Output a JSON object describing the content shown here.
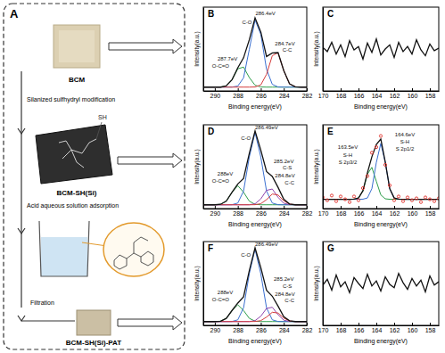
{
  "diagram": {
    "label": "A",
    "materials": [
      "BCM",
      "BCM-SH(Si)",
      "BCM-SH(Si)-PAT"
    ],
    "steps": [
      "Silanized sulfhydryl modification",
      "Acid aqueous solution adsorption",
      "Filtration"
    ],
    "structure_label": "SH"
  },
  "chart_data": [
    {
      "type": "line",
      "title": "B",
      "xlabel": "Binding energy(eV)",
      "ylabel": "Intensity(a.u.)",
      "x": [
        291,
        290.5,
        290,
        289.5,
        289,
        288.5,
        288,
        287.5,
        287,
        286.5,
        286,
        285.5,
        285,
        284.5,
        284,
        283.5,
        283,
        282.5,
        282
      ],
      "xlim": [
        291,
        282
      ],
      "xticks": [
        290,
        288,
        286,
        284,
        282
      ],
      "ylim": [
        0,
        110
      ],
      "yticks": [],
      "tick_labels": "x",
      "series": [
        {
          "color": "#2e9e4a",
          "values": [
            5,
            5,
            5,
            5,
            6.7,
            14.8,
            29,
            31.3,
            17.6,
            7.5,
            5.2,
            5,
            5,
            5,
            5,
            5,
            5,
            5,
            5
          ]
        },
        {
          "color": "#3a6fd0",
          "values": [
            5,
            5,
            5,
            5,
            5,
            5,
            6.4,
            17.2,
            54.5,
            93.2,
            74.3,
            28.4,
            8.6,
            5.2,
            5,
            5,
            5,
            5,
            5
          ]
        },
        {
          "color": "#d43c3c",
          "values": [
            5,
            5,
            5,
            5,
            5,
            5,
            5,
            5,
            5,
            5.2,
            7.9,
            21.8,
            46.3,
            50.1,
            26.6,
            9.3,
            5.4,
            5,
            5
          ]
        },
        {
          "color": "#111111",
          "values": [
            5,
            5,
            5,
            5,
            6.7,
            14.8,
            30.4,
            43.5,
            67.1,
            95.9,
            77.4,
            45.2,
            49.9,
            50.3,
            26.6,
            9.3,
            5.4,
            5,
            5
          ]
        }
      ],
      "annotations": [
        {
          "text": "286.4eV",
          "x": 285.6,
          "y": 100
        },
        {
          "text": "C-O",
          "x": 287.2,
          "y": 88
        },
        {
          "text": "284.7eV",
          "x": 283.9,
          "y": 60
        },
        {
          "text": "C-C",
          "x": 283.7,
          "y": 51
        },
        {
          "text": "287.7eV",
          "x": 288.9,
          "y": 40
        },
        {
          "text": "O-C=O",
          "x": 289.5,
          "y": 31
        }
      ]
    },
    {
      "type": "line",
      "title": "C",
      "xlabel": "Binding energy(eV)",
      "ylabel": "Intensity(a.u.)",
      "x": [
        170,
        169.5,
        169,
        168.5,
        168,
        167.5,
        167,
        166.5,
        166,
        165.5,
        165,
        164.5,
        164,
        163.5,
        163,
        162.5,
        162,
        161.5,
        161,
        160.5,
        160,
        159.5,
        159,
        158.5,
        158,
        157.5,
        157
      ],
      "xlim": [
        170,
        157
      ],
      "xticks": [
        170,
        168,
        166,
        164,
        162,
        160,
        158
      ],
      "ylim": [
        0,
        100
      ],
      "yticks": [],
      "tick_labels": "x",
      "series": [
        {
          "color": "#111111",
          "values": [
            52,
            47,
            58,
            44,
            55,
            41,
            60,
            49,
            53,
            38,
            57,
            46,
            62,
            43,
            50,
            55,
            40,
            58,
            47,
            53,
            44,
            61,
            49,
            42,
            56,
            48,
            51
          ]
        }
      ],
      "annotations": []
    },
    {
      "type": "line",
      "title": "D",
      "xlabel": "Binding energy(eV)",
      "ylabel": "Intensity(a.u.)",
      "x": [
        291,
        290.5,
        290,
        289.5,
        289,
        288.5,
        288,
        287.5,
        287,
        286.5,
        286,
        285.5,
        285,
        284.5,
        284,
        283.5,
        283,
        282.5,
        282
      ],
      "xlim": [
        291,
        282
      ],
      "xticks": [
        290,
        288,
        286,
        284,
        282
      ],
      "ylim": [
        0,
        110
      ],
      "yticks": [],
      "tick_labels": "x",
      "series": [
        {
          "color": "#2e9e4a",
          "values": [
            5,
            5,
            5,
            5.6,
            9.8,
            21.5,
            30,
            21.5,
            9.8,
            5.6,
            5,
            5,
            5,
            5,
            5,
            5,
            5,
            5,
            5
          ]
        },
        {
          "color": "#3a6fd0",
          "values": [
            5,
            5,
            5,
            5,
            5,
            5.1,
            7.3,
            23,
            67.7,
            100,
            67.7,
            23,
            7.3,
            5.1,
            5,
            5,
            5,
            5,
            5
          ]
        },
        {
          "color": "#8e44ad",
          "values": [
            5,
            5,
            5,
            5,
            5,
            5,
            5,
            5,
            5,
            6.3,
            12.7,
            23.9,
            25.7,
            14.9,
            7,
            5.2,
            5,
            5,
            5
          ]
        },
        {
          "color": "#d43c3c",
          "values": [
            5,
            5,
            5,
            5,
            5,
            5,
            5,
            5,
            5,
            5.1,
            6.4,
            11.8,
            19.1,
            17.9,
            10.3,
            5.9,
            5,
            5,
            5
          ]
        },
        {
          "color": "#111111",
          "values": [
            5,
            5,
            5,
            5.6,
            9.8,
            21.6,
            32.3,
            39.5,
            72.5,
            102,
            76.8,
            48.7,
            42.1,
            27.9,
            12.3,
            6.1,
            5,
            5,
            5
          ]
        }
      ],
      "annotations": [
        {
          "text": "286.49eV",
          "x": 285.5,
          "y": 104
        },
        {
          "text": "C-O",
          "x": 287.3,
          "y": 90
        },
        {
          "text": "285.2eV",
          "x": 284.0,
          "y": 60
        },
        {
          "text": "C-S",
          "x": 283.7,
          "y": 51
        },
        {
          "text": "284.8eV",
          "x": 283.9,
          "y": 41
        },
        {
          "text": "C-C",
          "x": 283.5,
          "y": 32
        },
        {
          "text": "288eV",
          "x": 289.1,
          "y": 43
        },
        {
          "text": "O-C=O",
          "x": 289.5,
          "y": 34
        }
      ]
    },
    {
      "type": "line",
      "title": "E",
      "xlabel": "Binding energy(eV)",
      "ylabel": "Intensity(a.u.)",
      "x": [
        170,
        169.5,
        169,
        168.5,
        168,
        167.5,
        167,
        166.5,
        166,
        165.5,
        165,
        164.5,
        164,
        163.5,
        163,
        162.5,
        162,
        161.5,
        161,
        160.5,
        160,
        159.5,
        159,
        158.5,
        158,
        157.5,
        157
      ],
      "xlim": [
        170,
        157
      ],
      "xticks": [
        170,
        168,
        166,
        164,
        162,
        160,
        158
      ],
      "ylim": [
        0,
        90
      ],
      "yticks": [],
      "tick_labels": "x",
      "series": [
        {
          "color": "#2e9e4a",
          "values": [
            10,
            10,
            10,
            10,
            10,
            10,
            10,
            10.1,
            11.4,
            19.1,
            37,
            44.3,
            29.3,
            14.7,
            10.5,
            10,
            10,
            10,
            10,
            10,
            10,
            10,
            10,
            10,
            10,
            10,
            10
          ]
        },
        {
          "color": "#3a6fd0",
          "values": [
            10,
            10,
            10,
            10,
            10,
            10,
            10,
            10,
            10,
            10.1,
            11.4,
            21.4,
            49.6,
            70,
            49.6,
            21.4,
            11.4,
            10.1,
            10,
            10,
            10,
            10,
            10,
            10,
            10,
            10,
            10
          ]
        },
        {
          "color": "#111111",
          "values": [
            10,
            10,
            10,
            10,
            10,
            10,
            10,
            10.1,
            11.4,
            19.2,
            38.4,
            55.7,
            68.9,
            74.7,
            50.1,
            21.4,
            11.4,
            10.1,
            10,
            10,
            10,
            10,
            10,
            10,
            10,
            10,
            10
          ]
        },
        {
          "color": "#e0302a",
          "marker": "circle",
          "line_style": "none",
          "values": [
            12,
            9,
            14,
            8,
            13,
            10,
            7,
            13,
            9,
            22,
            35,
            60,
            66,
            78,
            47,
            25,
            9,
            13,
            8,
            12,
            9,
            11,
            7,
            12,
            10,
            8,
            11
          ]
        }
      ],
      "annotations": [
        {
          "text": "164.6eV",
          "x": 160.8,
          "y": 78
        },
        {
          "text": "S-H",
          "x": 160.8,
          "y": 70
        },
        {
          "text": "S 2p1/2",
          "x": 160.8,
          "y": 62
        },
        {
          "text": "163.5eV",
          "x": 167.2,
          "y": 64
        },
        {
          "text": "S-H",
          "x": 167.2,
          "y": 56
        },
        {
          "text": "S 2p3/2",
          "x": 167.2,
          "y": 48
        }
      ]
    },
    {
      "type": "line",
      "title": "F",
      "xlabel": "Binding energy(eV)",
      "ylabel": "Intensity(a.u.)",
      "x": [
        291,
        290.5,
        290,
        289.5,
        289,
        288.5,
        288,
        287.5,
        287,
        286.5,
        286,
        285.5,
        285,
        284.5,
        284,
        283.5,
        283,
        282.5,
        282
      ],
      "xlim": [
        291,
        282
      ],
      "xticks": [
        290,
        288,
        286,
        284,
        282
      ],
      "ylim": [
        0,
        110
      ],
      "yticks": [],
      "tick_labels": "x",
      "series": [
        {
          "color": "#2e9e4a",
          "values": [
            5,
            5,
            5,
            5.5,
            9.2,
            19.5,
            27,
            19.5,
            9.2,
            5.5,
            5,
            5,
            5,
            5,
            5,
            5,
            5,
            5,
            5
          ]
        },
        {
          "color": "#3a6fd0",
          "values": [
            5,
            5,
            5,
            5,
            5,
            5.1,
            7.3,
            23,
            67.7,
            100,
            67.7,
            23,
            7.3,
            5.1,
            5,
            5,
            5,
            5,
            5
          ]
        },
        {
          "color": "#8e44ad",
          "values": [
            5,
            5,
            5,
            5,
            5,
            5,
            5,
            5,
            5,
            6.2,
            12,
            22.2,
            23.8,
            14,
            6.8,
            5.2,
            5,
            5,
            5
          ]
        },
        {
          "color": "#d43c3c",
          "values": [
            5,
            5,
            5,
            5,
            5,
            5,
            5,
            5,
            5,
            5.1,
            6.2,
            10.9,
            17.2,
            16.2,
            9.6,
            5.8,
            5,
            5,
            5
          ]
        },
        {
          "color": "#111111",
          "values": [
            5,
            5,
            5,
            5.5,
            9.2,
            19.6,
            29.3,
            37.5,
            71.9,
            101.8,
            75.9,
            46.1,
            38.3,
            25.3,
            11.4,
            6,
            5,
            5,
            5
          ]
        }
      ],
      "annotations": [
        {
          "text": "286.49eV",
          "x": 285.5,
          "y": 104
        },
        {
          "text": "C-O",
          "x": 287.3,
          "y": 90
        },
        {
          "text": "285.2eV",
          "x": 284.0,
          "y": 58
        },
        {
          "text": "C-S",
          "x": 283.7,
          "y": 49
        },
        {
          "text": "284.8eV",
          "x": 283.9,
          "y": 39
        },
        {
          "text": "C-C",
          "x": 283.5,
          "y": 30
        },
        {
          "text": "288eV",
          "x": 289.1,
          "y": 41
        },
        {
          "text": "O-C=O",
          "x": 289.5,
          "y": 32
        }
      ]
    },
    {
      "type": "line",
      "title": "G",
      "xlabel": "Binding energy(eV)",
      "ylabel": "Intensity(a.u.)",
      "x": [
        170,
        169.5,
        169,
        168.5,
        168,
        167.5,
        167,
        166.5,
        166,
        165.5,
        165,
        164.5,
        164,
        163.5,
        163,
        162.5,
        162,
        161.5,
        161,
        160.5,
        160,
        159.5,
        159,
        158.5,
        158,
        157.5,
        157
      ],
      "xlim": [
        170,
        157
      ],
      "xticks": [
        170,
        168,
        166,
        164,
        162,
        160,
        158
      ],
      "ylim": [
        0,
        100
      ],
      "yticks": [],
      "tick_labels": "x",
      "series": [
        {
          "color": "#111111",
          "values": [
            48,
            55,
            42,
            60,
            46,
            52,
            39,
            57,
            50,
            44,
            61,
            47,
            53,
            41,
            58,
            49,
            45,
            62,
            51,
            43,
            56,
            47,
            54,
            40,
            59,
            48,
            52
          ]
        }
      ],
      "annotations": []
    }
  ]
}
